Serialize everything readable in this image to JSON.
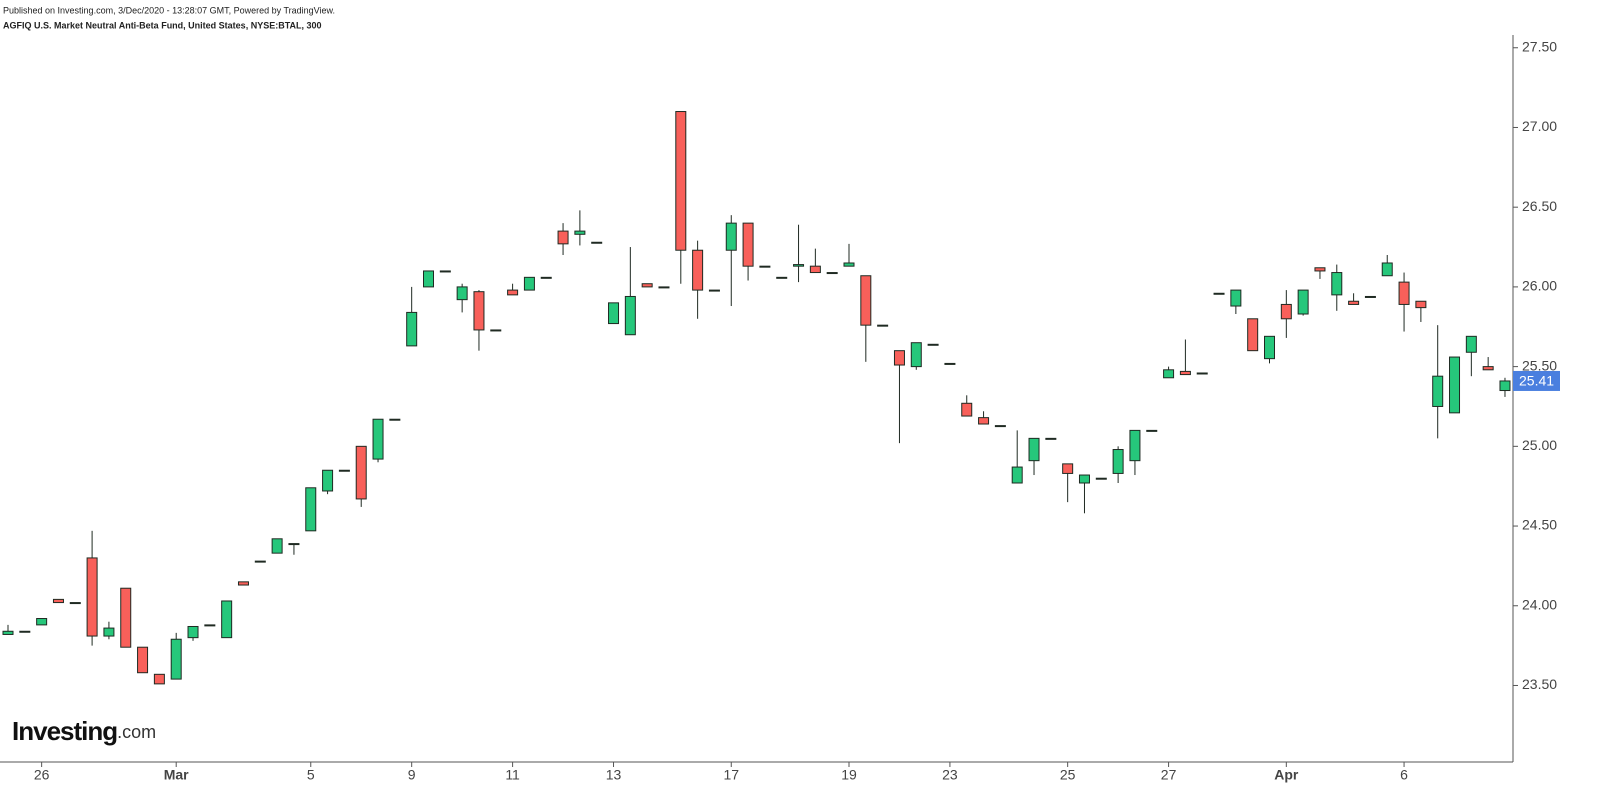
{
  "header": {
    "published": "Published on Investing.com, 3/Dec/2020 - 13:28:07 GMT, Powered by TradingView.",
    "title": "AGFIQ U.S. Market Neutral Anti-Beta Fund, United States, NYSE:BTAL, 300"
  },
  "watermark": {
    "main": "Investing",
    "suffix": ".com"
  },
  "chart_data": {
    "type": "candlestick",
    "categories": [
      null,
      null,
      "26",
      null,
      null,
      null,
      null,
      null,
      null,
      null,
      "Mar",
      null,
      null,
      null,
      null,
      null,
      null,
      null,
      "5",
      null,
      null,
      null,
      null,
      null,
      "9",
      null,
      null,
      null,
      null,
      null,
      "11",
      null,
      null,
      null,
      null,
      null,
      "13",
      null,
      null,
      null,
      null,
      null,
      null,
      "17",
      null,
      null,
      null,
      null,
      null,
      null,
      "19",
      null,
      null,
      null,
      null,
      null,
      "23",
      null,
      null,
      null,
      null,
      null,
      null,
      "25",
      null,
      null,
      null,
      null,
      null,
      "27",
      null,
      null,
      null,
      null,
      null,
      null,
      "Apr",
      null,
      null,
      null,
      null,
      null,
      null,
      "6",
      null,
      null,
      null,
      null,
      null,
      null
    ],
    "open": [
      23.82,
      23.84,
      23.88,
      24.04,
      24.02,
      24.3,
      23.81,
      24.11,
      23.74,
      23.57,
      23.54,
      23.8,
      23.88,
      23.8,
      24.15,
      24.28,
      24.33,
      24.39,
      24.47,
      24.72,
      24.85,
      25.0,
      24.92,
      25.17,
      25.63,
      26.0,
      26.1,
      25.92,
      25.97,
      25.73,
      25.98,
      25.98,
      26.06,
      26.35,
      26.33,
      26.28,
      25.77,
      25.7,
      26.02,
      26.0,
      27.1,
      26.23,
      25.98,
      26.23,
      26.4,
      26.13,
      26.06,
      26.13,
      26.13,
      26.09,
      26.13,
      26.07,
      25.76,
      25.6,
      25.5,
      25.64,
      25.52,
      25.27,
      25.18,
      25.13,
      24.77,
      24.91,
      25.05,
      24.89,
      24.77,
      24.8,
      24.83,
      24.91,
      25.1,
      25.43,
      25.47,
      25.46,
      25.96,
      25.88,
      25.8,
      25.55,
      25.89,
      25.83,
      26.12,
      25.95,
      25.91,
      25.94,
      26.07,
      26.03,
      25.91,
      25.25,
      25.21,
      25.59,
      25.5,
      25.35
    ],
    "high": [
      23.88,
      23.84,
      23.92,
      24.04,
      24.02,
      24.47,
      23.9,
      24.11,
      23.74,
      23.57,
      23.83,
      23.87,
      23.88,
      24.03,
      24.15,
      24.28,
      24.42,
      24.39,
      24.74,
      24.85,
      24.85,
      25.0,
      25.17,
      25.17,
      26.0,
      26.1,
      26.1,
      26.02,
      25.98,
      25.73,
      26.02,
      26.06,
      26.06,
      26.4,
      26.48,
      26.28,
      25.9,
      26.25,
      26.02,
      26.0,
      27.1,
      26.29,
      25.98,
      26.45,
      26.4,
      26.13,
      26.06,
      26.39,
      26.24,
      26.09,
      26.27,
      26.07,
      25.76,
      25.6,
      25.65,
      25.64,
      25.52,
      25.32,
      25.22,
      25.13,
      25.1,
      25.05,
      25.05,
      24.89,
      24.82,
      24.8,
      25.0,
      25.1,
      25.1,
      25.5,
      25.67,
      25.46,
      25.96,
      25.98,
      25.8,
      25.69,
      25.98,
      25.98,
      26.12,
      26.14,
      25.96,
      25.94,
      26.2,
      26.09,
      25.91,
      25.76,
      25.56,
      25.69,
      25.56,
      25.43
    ],
    "low": [
      23.82,
      23.84,
      23.88,
      24.02,
      24.02,
      23.75,
      23.79,
      23.74,
      23.58,
      23.51,
      23.54,
      23.78,
      23.88,
      23.8,
      24.13,
      24.28,
      24.33,
      24.32,
      24.47,
      24.7,
      24.85,
      24.62,
      24.9,
      25.17,
      25.63,
      26.0,
      26.1,
      25.84,
      25.6,
      25.73,
      25.95,
      25.98,
      26.06,
      26.2,
      26.26,
      26.28,
      25.77,
      25.7,
      26.0,
      26.0,
      26.02,
      25.8,
      25.98,
      25.88,
      26.04,
      26.13,
      26.06,
      26.03,
      26.09,
      26.09,
      26.13,
      25.53,
      25.76,
      25.02,
      25.48,
      25.64,
      25.52,
      25.19,
      25.14,
      25.13,
      24.77,
      24.82,
      25.05,
      24.65,
      24.58,
      24.8,
      24.77,
      24.82,
      25.1,
      25.43,
      25.45,
      25.46,
      25.96,
      25.83,
      25.6,
      25.52,
      25.68,
      25.82,
      26.05,
      25.85,
      25.89,
      25.94,
      26.07,
      25.72,
      25.78,
      25.05,
      25.21,
      25.44,
      25.48,
      25.31
    ],
    "close": [
      23.84,
      23.84,
      23.92,
      24.02,
      24.02,
      23.81,
      23.86,
      23.74,
      23.58,
      23.51,
      23.79,
      23.87,
      23.88,
      24.03,
      24.13,
      24.28,
      24.42,
      24.39,
      24.74,
      24.85,
      24.85,
      24.67,
      25.17,
      25.17,
      25.84,
      26.1,
      26.1,
      26.0,
      25.73,
      25.73,
      25.95,
      26.06,
      26.06,
      26.27,
      26.35,
      26.28,
      25.9,
      25.94,
      26.0,
      26.0,
      26.23,
      25.98,
      25.98,
      26.4,
      26.13,
      26.13,
      26.06,
      26.14,
      26.09,
      26.09,
      26.15,
      25.76,
      25.76,
      25.51,
      25.65,
      25.64,
      25.52,
      25.19,
      25.14,
      25.13,
      24.87,
      25.05,
      25.05,
      24.83,
      24.82,
      24.8,
      24.98,
      25.1,
      25.1,
      25.48,
      25.45,
      25.46,
      25.96,
      25.98,
      25.6,
      25.69,
      25.8,
      25.98,
      26.1,
      26.09,
      25.89,
      25.94,
      26.15,
      25.89,
      25.87,
      25.44,
      25.56,
      25.69,
      25.48,
      25.41
    ],
    "up_color": "#26c77b",
    "down_color": "#f8605a",
    "last_price_color": "#4a7fdf",
    "ylim": [
      23.02,
      27.58
    ],
    "yticks": [
      {
        "value": 23.5,
        "label": "23.50"
      },
      {
        "value": 24,
        "label": "24.00"
      },
      {
        "value": 24.5,
        "label": "24.50"
      },
      {
        "value": 25,
        "label": "25.00"
      },
      {
        "value": 25.5,
        "label": "25.50"
      },
      {
        "value": 26,
        "label": "26.00"
      },
      {
        "value": 26.5,
        "label": "26.50"
      },
      {
        "value": 27,
        "label": "27.00"
      },
      {
        "value": 27.5,
        "label": "27.50"
      }
    ],
    "grid": false
  }
}
